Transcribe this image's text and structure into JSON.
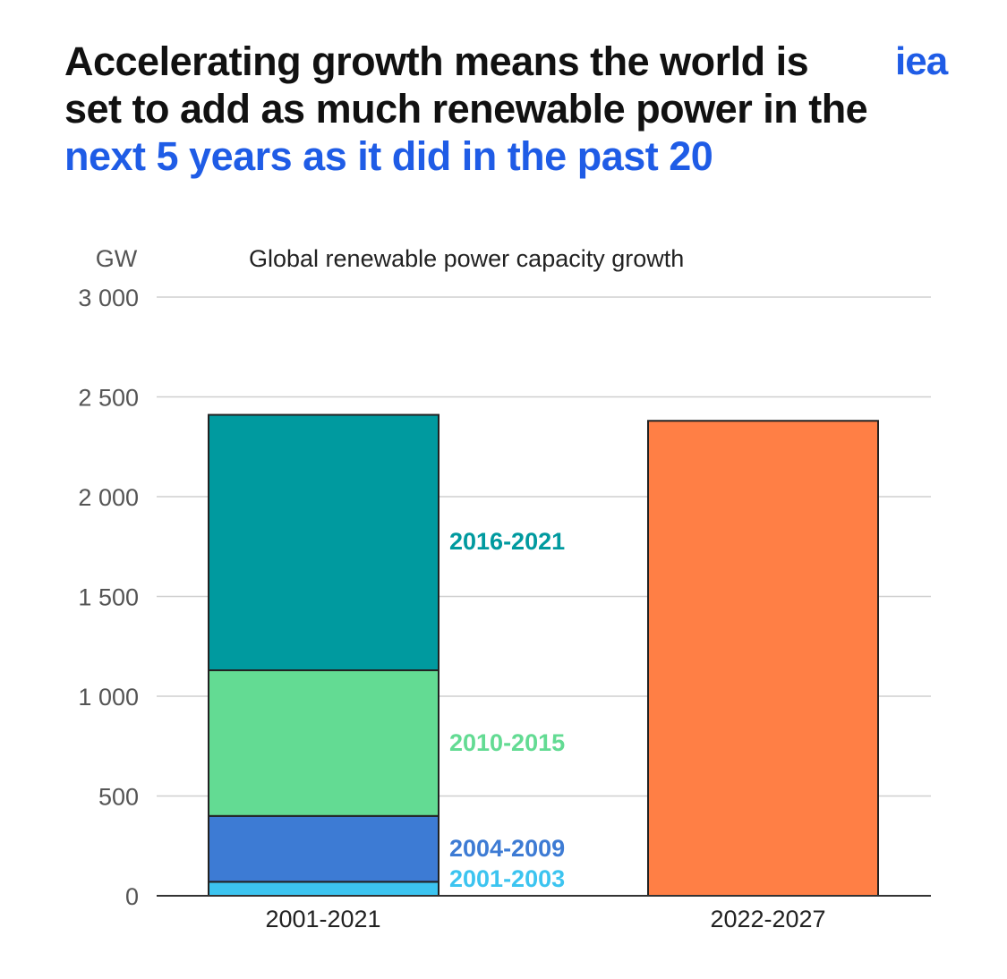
{
  "headline": {
    "part1": "Accelerating growth means the world is set to add as much renewable power in the ",
    "highlight": "next 5 years as it did in the past 20"
  },
  "logo": {
    "text": "iea"
  },
  "colors": {
    "highlight": "#1f5ce6",
    "s2001_2003": "#3cc4f0",
    "s2004_2009": "#3d7bd4",
    "s2010_2015": "#63db93",
    "s2016_2021": "#009a9f",
    "s2022_2027": "#ff7f45"
  },
  "chart_data": {
    "type": "bar",
    "stacked": true,
    "subtitle": "Global renewable power capacity growth",
    "unit": "GW",
    "ylim": [
      0,
      3000
    ],
    "yticks": [
      0,
      500,
      1000,
      1500,
      2000,
      2500,
      3000
    ],
    "ytick_labels": [
      "0",
      "500",
      "1 000",
      "1 500",
      "2 000",
      "2 500",
      "3 000"
    ],
    "grid": true,
    "categories": [
      "2001-2021",
      "2022-2027"
    ],
    "series": [
      {
        "name": "2001-2003",
        "values": [
          70,
          0
        ],
        "color": "#3cc4f0"
      },
      {
        "name": "2004-2009",
        "values": [
          330,
          0
        ],
        "color": "#3d7bd4"
      },
      {
        "name": "2010-2015",
        "values": [
          730,
          0
        ],
        "color": "#63db93"
      },
      {
        "name": "2016-2021",
        "values": [
          1280,
          0
        ],
        "color": "#009a9f"
      },
      {
        "name": "2022-2027",
        "values": [
          0,
          2380
        ],
        "color": "#ff7f45",
        "unlabeled": true
      }
    ]
  }
}
